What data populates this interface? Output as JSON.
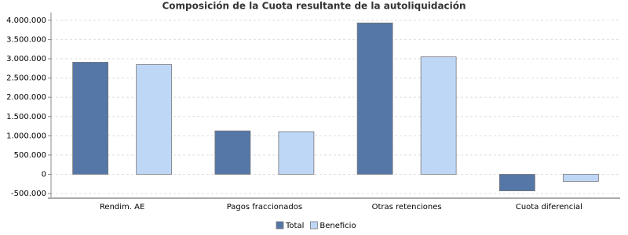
{
  "chart_data": {
    "type": "bar",
    "title": "Composición de la Cuota resultante de la autoliquidación",
    "categories": [
      "Rendim. AE",
      "Pagos fraccionados",
      "Otras retenciones",
      "Cuota diferencial"
    ],
    "series": [
      {
        "name": "Total",
        "color": "#5577a8",
        "values": [
          2910000,
          1127000,
          3930000,
          -430000
        ]
      },
      {
        "name": "Beneficio",
        "color": "#bfd7f7",
        "values": [
          2850000,
          1107000,
          3050000,
          -185000
        ]
      }
    ],
    "ylim": [
      -600000,
      4200000
    ],
    "yticks": [
      {
        "value": -500000,
        "label": "-500.000"
      },
      0,
      {
        "value": 500000,
        "label": "500.000"
      },
      {
        "value": 1000000,
        "label": "1.000.000"
      },
      {
        "value": 1500000,
        "label": "1.500.000"
      },
      {
        "value": 2000000,
        "label": "2.000.000"
      },
      {
        "value": 2500000,
        "label": "2.500.000"
      },
      {
        "value": 3000000,
        "label": "3.000.000"
      },
      {
        "value": 3500000,
        "label": "3.500.000"
      },
      {
        "value": 4000000,
        "label": "4.000.000"
      }
    ],
    "grid": true,
    "legend": "bottom"
  }
}
